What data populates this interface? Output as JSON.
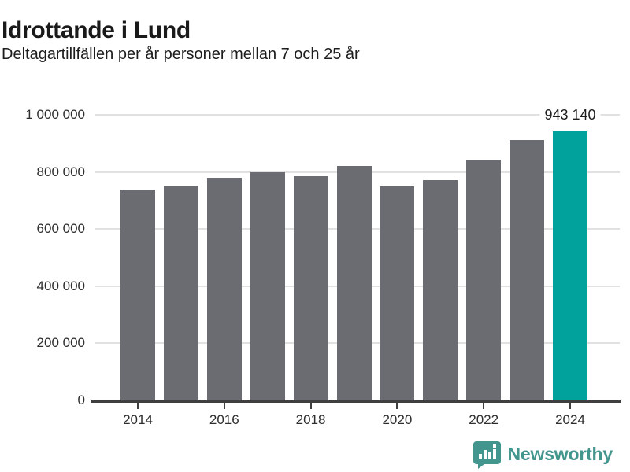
{
  "header": {
    "title": "Idrottande i Lund",
    "subtitle": "Deltagartillfällen per år personer mellan 7 och 25 år"
  },
  "chart_data": {
    "type": "bar",
    "categories": [
      "2014",
      "2015",
      "2016",
      "2017",
      "2018",
      "2019",
      "2020",
      "2021",
      "2022",
      "2023",
      "2024"
    ],
    "values": [
      737000,
      750000,
      780000,
      799000,
      786000,
      821000,
      749000,
      771000,
      842000,
      911000,
      943140
    ],
    "title": "Idrottande i Lund",
    "subtitle": "Deltagartillfällen per år personer mellan 7 och 25 år",
    "xlabel": "",
    "ylabel": "",
    "ylim": [
      0,
      1000000
    ],
    "grid": true,
    "legend": false,
    "highlight_index": 10,
    "highlight_label": "943 140",
    "x_tick_labels": [
      "2014",
      "2016",
      "2018",
      "2020",
      "2022",
      "2024"
    ],
    "x_tick_indices": [
      0,
      2,
      4,
      6,
      8,
      10
    ],
    "y_tick_values": [
      0,
      200000,
      400000,
      600000,
      800000,
      1000000
    ],
    "y_tick_labels": [
      "0",
      "200 000",
      "400 000",
      "600 000",
      "800 000",
      "1 000 000"
    ],
    "bar_color": "#6b6b72",
    "highlight_color": "#00a29b",
    "gridline_color": "#e1e1e1",
    "axis_color": "#3f3f3f"
  },
  "footer": {
    "brand": "Newsworthy",
    "brand_color": "#43968e",
    "logo_icon": "bar-chart-speech-bubble"
  }
}
